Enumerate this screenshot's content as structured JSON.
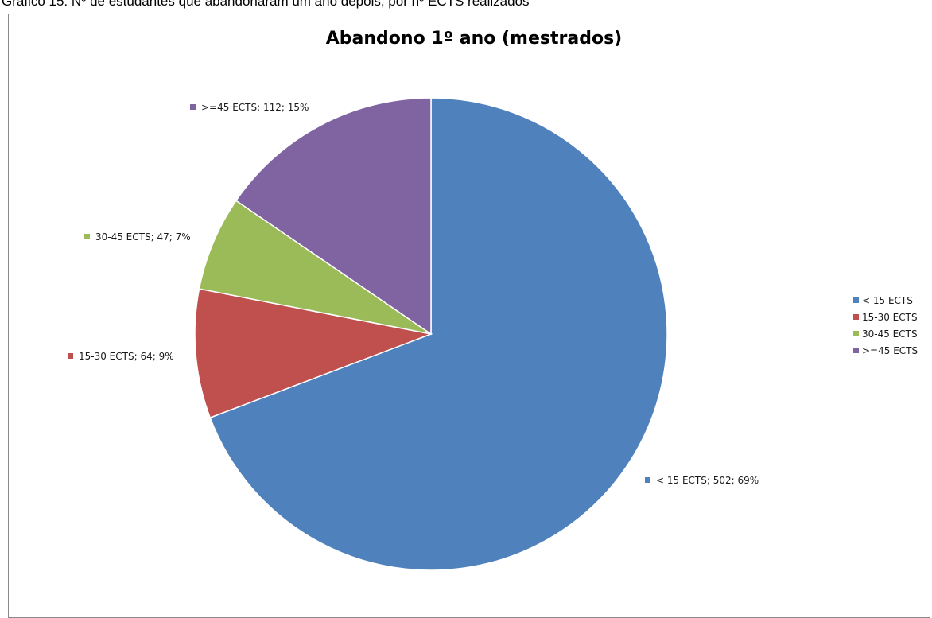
{
  "caption": "Gráfico 15: Nº de estudantes que abandonaram um ano depois, por nº ECTS realizados",
  "chart_data": {
    "type": "pie",
    "title": "Abandono 1º ano (mestrados)",
    "categories": [
      "< 15 ECTS",
      "15-30 ECTS",
      "30-45 ECTS",
      ">=45 ECTS"
    ],
    "values": [
      502,
      64,
      47,
      112
    ],
    "percent_labels": [
      "69%",
      "9%",
      "7%",
      "15%"
    ],
    "data_labels": [
      "< 15 ECTS; 502; 69%",
      "15-30 ECTS; 64; 9%",
      "30-45 ECTS; 47; 7%",
      ">=45 ECTS; 112; 15%"
    ],
    "colors": [
      "#4F81BD",
      "#C0504D",
      "#9BBB59",
      "#8064A2"
    ],
    "legend_position": "right",
    "start_angle": "12 o'clock",
    "direction": "clockwise"
  }
}
